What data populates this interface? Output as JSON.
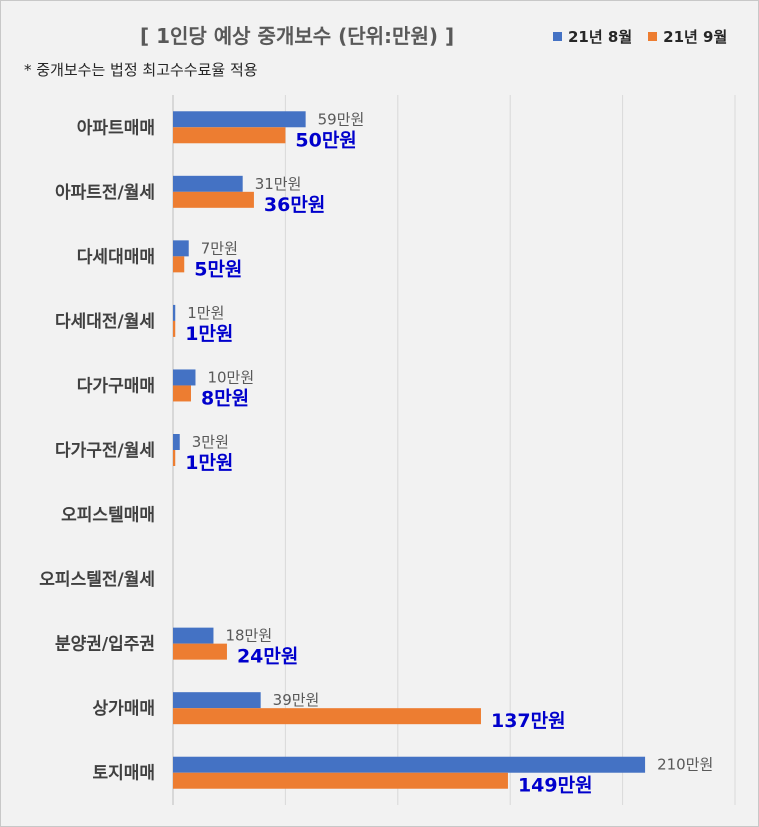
{
  "chart_data": {
    "type": "bar",
    "orientation": "horizontal",
    "title": "[ 1인당 예상 중개보수 (단위:만원) ]",
    "note": "* 중개보수는 법정 최고수수료율 적용",
    "value_suffix": "만원",
    "categories": [
      "아파트매매",
      "아파트전/월세",
      "다세대매매",
      "다세대전/월세",
      "다가구매매",
      "다가구전/월세",
      "오피스텔매매",
      "오피스텔전/월세",
      "분양권/입주권",
      "상가매매",
      "토지매매"
    ],
    "series": [
      {
        "name": "21년 8월",
        "color": "#4472c4",
        "values": [
          59,
          31,
          7,
          1,
          10,
          3,
          null,
          null,
          18,
          39,
          210
        ]
      },
      {
        "name": "21년 9월",
        "color": "#ed7d31",
        "values": [
          50,
          36,
          5,
          1,
          8,
          1,
          null,
          null,
          24,
          137,
          149
        ]
      }
    ],
    "xlim": [
      0,
      250
    ],
    "grid": true,
    "legend": "top-right",
    "label_colors": {
      "series1": "#595959",
      "series2": "#0000cc"
    }
  }
}
